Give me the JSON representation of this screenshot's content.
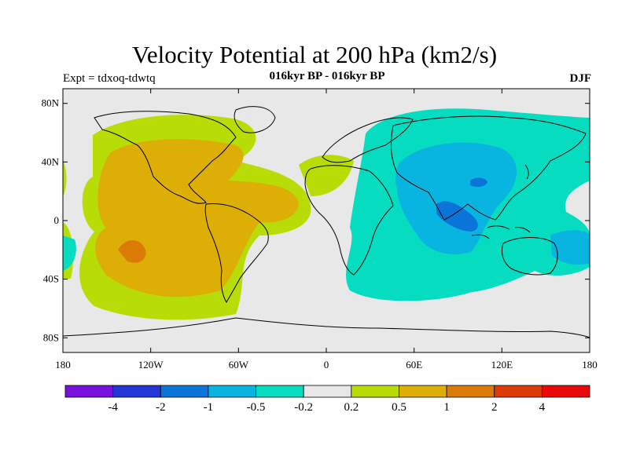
{
  "header": {
    "title": "Velocity Potential at 200 hPa (km2/s)",
    "subtitle": "016kyr BP - 016kyr BP",
    "experiment": "Expt = tdxoq-tdwtq",
    "season": "DJF"
  },
  "map": {
    "lat_ticks": [
      "80N",
      "40N",
      "0",
      "40S",
      "80S"
    ],
    "lon_ticks": [
      "180",
      "120W",
      "60W",
      "0",
      "60E",
      "120E",
      "180"
    ]
  },
  "colorbar": {
    "labels": [
      "-4",
      "-2",
      "-1",
      "-0.5",
      "-0.2",
      "0.2",
      "0.5",
      "1",
      "2",
      "4"
    ],
    "colors": [
      "#7a10dc",
      "#2436d6",
      "#0b74d8",
      "#08b4e0",
      "#06dcc0",
      "#e8e8e8",
      "#b8dc06",
      "#dcae06",
      "#dc7a06",
      "#dc3a06",
      "#e80a0a"
    ]
  },
  "palette": {
    "background": "#e8e8e8",
    "neg_weak": "#06dcc0",
    "neg_mid": "#08b4e0",
    "neg_strong": "#0b74d8",
    "pos_weak": "#b8dc06",
    "pos_mid": "#dcae06",
    "pos_strong": "#dc7a06"
  }
}
